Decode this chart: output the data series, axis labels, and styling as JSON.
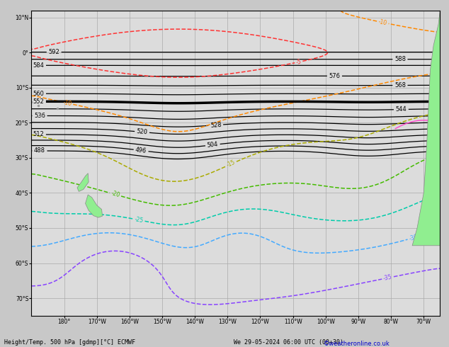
{
  "title": "Height/Temp. 500 hPa [gdmp][°C] ECMWF",
  "subtitle": "We 29-05-2024 06:00 UTC (00+30)",
  "copyright": "©weatheronline.co.uk",
  "bottom_label": "Height/Temp. 500 hPa [gdmp][°C] ECMWF",
  "figsize": [
    6.34,
    4.9
  ],
  "dpi": 100,
  "map_bg": "#dcdcdc",
  "fig_bg": "#c8c8c8",
  "land_color": "#90ee90",
  "land_edge": "#888888",
  "nz_color": "#90ee90",
  "grid_color": "#aaaaaa",
  "z500_color": "#000000",
  "thick_lw": 2.5,
  "thin_lw": 0.9,
  "temp_colors": {
    "-5": "#ff3333",
    "-10": "#ff8800",
    "-15": "#aaaa00",
    "-20": "#44bb00",
    "-25": "#00ccaa",
    "-30": "#44aaff",
    "-35": "#8844ff"
  },
  "slp_color": "#ff44cc",
  "xlim": [
    -190,
    -65
  ],
  "ylim": [
    -75,
    12
  ],
  "xticks": [
    -180,
    -170,
    -160,
    -150,
    -140,
    -130,
    -120,
    -110,
    -100,
    -90,
    -80,
    -70
  ],
  "yticks": [
    -70,
    -60,
    -50,
    -40,
    -30,
    -20,
    -10,
    0,
    10
  ],
  "xlabels": [
    "180°",
    "170°W",
    "160°W",
    "150°W",
    "140°W",
    "130°W",
    "120°W",
    "110°W",
    "100°W",
    "90°W",
    "80°W",
    "70°W"
  ],
  "ylabels": [
    "70°S",
    "60°S",
    "50°S",
    "40°S",
    "30°S",
    "20°S",
    "10°S",
    "0°",
    "10°N"
  ]
}
